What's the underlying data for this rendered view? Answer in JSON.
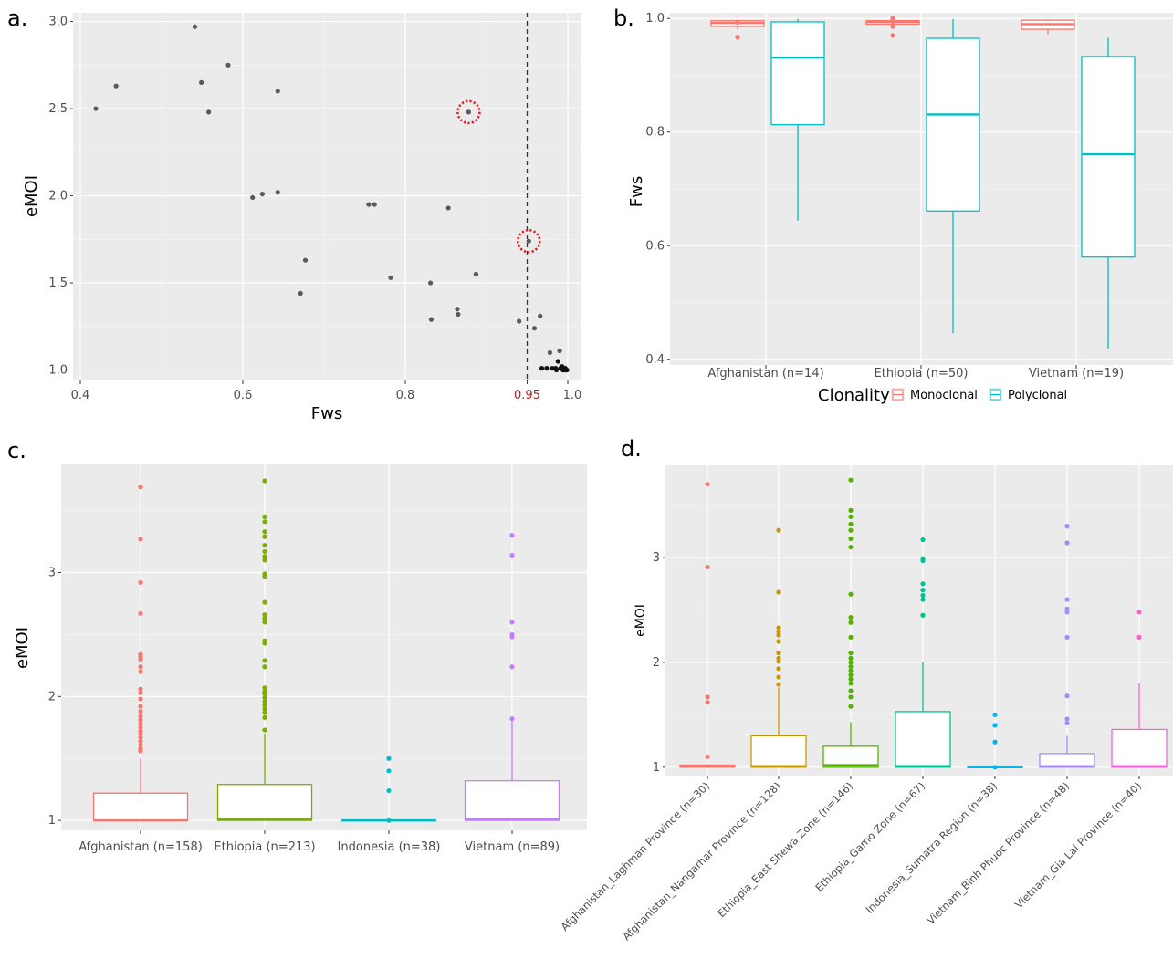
{
  "panel_labels": [
    "a.",
    "b.",
    "c.",
    "d."
  ],
  "colors": {
    "panel_bg": "#ebebeb",
    "grid_major": "#ffffff",
    "axis_text": "#4d4d4d",
    "title_text": "#000000",
    "afghanistan": "#f8766d",
    "ethiopia": "#7cae00",
    "indonesia": "#00bfc4",
    "vietnam": "#c77cff",
    "monoclonal": "#f8766d",
    "polyclonal": "#00bfc4",
    "laghman": "#f8766d",
    "nangarhar": "#c49a00",
    "east_shewa": "#53b400",
    "gamo": "#00c094",
    "sumatra": "#00b6eb",
    "binh_phuoc": "#a58aff",
    "gia_lai": "#fb61d7",
    "threshold_label": "#b22222",
    "highlight_circle": "#e41a1c"
  },
  "chart_data": [
    {
      "id": "a",
      "type": "scatter",
      "xlabel": "Fws",
      "ylabel": "eMOI",
      "xlim": [
        0.4,
        1.0
      ],
      "ylim": [
        0.94,
        3.05
      ],
      "xticks": [
        "0.4",
        "0.6",
        "0.8",
        "0.95",
        "1.0"
      ],
      "xtick_values": [
        0.4,
        0.6,
        0.8,
        0.95,
        1.0
      ],
      "yticks": [
        "1.0",
        "1.5",
        "2.0",
        "2.5",
        "3.0"
      ],
      "ytick_values": [
        1.0,
        1.5,
        2.0,
        2.5,
        3.0
      ],
      "threshold_x": 0.95,
      "highlighted_points": [
        [
          0.878,
          2.48
        ],
        [
          0.952,
          1.74
        ]
      ],
      "points": [
        [
          0.419,
          2.5
        ],
        [
          0.444,
          2.63
        ],
        [
          0.541,
          2.97
        ],
        [
          0.549,
          2.65
        ],
        [
          0.558,
          2.48
        ],
        [
          0.582,
          2.75
        ],
        [
          0.612,
          1.99
        ],
        [
          0.624,
          2.01
        ],
        [
          0.643,
          2.6
        ],
        [
          0.643,
          2.02
        ],
        [
          0.677,
          1.63
        ],
        [
          0.671,
          1.44
        ],
        [
          0.755,
          1.95
        ],
        [
          0.762,
          1.95
        ],
        [
          0.782,
          1.53
        ],
        [
          0.831,
          1.5
        ],
        [
          0.832,
          1.29
        ],
        [
          0.853,
          1.93
        ],
        [
          0.864,
          1.35
        ],
        [
          0.865,
          1.32
        ],
        [
          0.878,
          2.48
        ],
        [
          0.887,
          1.55
        ],
        [
          0.94,
          1.28
        ],
        [
          0.952,
          1.74
        ],
        [
          0.959,
          1.24
        ],
        [
          0.966,
          1.31
        ],
        [
          0.968,
          1.01
        ],
        [
          0.974,
          1.01
        ],
        [
          0.978,
          1.1
        ],
        [
          0.981,
          1.01
        ],
        [
          0.985,
          1.01
        ],
        [
          0.988,
          1.05
        ],
        [
          0.99,
          1.11
        ],
        [
          0.991,
          1.01
        ],
        [
          0.993,
          1.02
        ],
        [
          0.995,
          1.0
        ],
        [
          0.997,
          1.01
        ],
        [
          0.998,
          1.0
        ],
        [
          0.999,
          1.0
        ],
        [
          0.986,
          1.0
        ],
        [
          0.994,
          1.0
        ]
      ]
    },
    {
      "id": "b",
      "type": "box",
      "ylabel": "Fws",
      "ylim": [
        0.39,
        1.01
      ],
      "yticks": [
        "0.4",
        "0.6",
        "0.8",
        "1.0"
      ],
      "ytick_values": [
        0.4,
        0.6,
        0.8,
        1.0
      ],
      "categories": [
        "Afghanistan (n=14)",
        "Ethiopia (n=50)",
        "Vietnam (n=19)"
      ],
      "legend_title": "Clonality",
      "series": [
        {
          "name": "Monoclonal",
          "color_key": "monoclonal",
          "boxes": [
            {
              "q1": 0.986,
              "median": 0.992,
              "q3": 0.996,
              "whisker_low": 0.982,
              "whisker_high": 0.998,
              "outliers": [
                0.967,
                0.993
              ]
            },
            {
              "q1": 0.99,
              "median": 0.994,
              "q3": 0.996,
              "whisker_low": 0.986,
              "whisker_high": 0.998,
              "outliers": [
                0.97,
                0.986,
                0.995,
                1.0
              ]
            },
            {
              "q1": 0.981,
              "median": 0.99,
              "q3": 0.997,
              "whisker_low": 0.972,
              "whisker_high": 0.999,
              "outliers": []
            }
          ]
        },
        {
          "name": "Polyclonal",
          "color_key": "polyclonal",
          "boxes": [
            {
              "q1": 0.813,
              "median": 0.931,
              "q3": 0.994,
              "whisker_low": 0.644,
              "whisker_high": 0.999,
              "outliers": []
            },
            {
              "q1": 0.661,
              "median": 0.831,
              "q3": 0.965,
              "whisker_low": 0.446,
              "whisker_high": 0.999,
              "outliers": []
            },
            {
              "q1": 0.58,
              "median": 0.761,
              "q3": 0.933,
              "whisker_low": 0.419,
              "whisker_high": 0.966,
              "outliers": []
            }
          ]
        }
      ]
    },
    {
      "id": "c",
      "type": "box",
      "ylabel": "eMOI",
      "ylim": [
        0.92,
        3.88
      ],
      "yticks": [
        "1",
        "2",
        "3"
      ],
      "ytick_values": [
        1,
        2,
        3
      ],
      "categories": [
        "Afghanistan (n=158)",
        "Ethiopia (n=213)",
        "Indonesia (n=38)",
        "Vietnam (n=89)"
      ],
      "color_keys": [
        "afghanistan",
        "ethiopia",
        "indonesia",
        "vietnam"
      ],
      "boxes": [
        {
          "q1": 1.0,
          "median": 1.0,
          "q3": 1.22,
          "whisker_low": 1.0,
          "whisker_high": 1.5,
          "outliers": [
            3.69,
            3.27,
            2.92,
            2.67,
            2.34,
            2.32,
            2.3,
            2.24,
            2.2,
            2.06,
            2.03,
            1.98,
            1.92,
            1.88,
            1.84,
            1.81,
            1.78,
            1.75,
            1.72,
            1.7,
            1.67,
            1.64,
            1.61,
            1.58,
            1.56
          ]
        },
        {
          "q1": 1.0,
          "median": 1.01,
          "q3": 1.29,
          "whisker_low": 1.0,
          "whisker_high": 1.7,
          "outliers": [
            3.74,
            3.45,
            3.41,
            3.33,
            3.29,
            3.22,
            3.17,
            3.13,
            3.1,
            2.99,
            2.97,
            2.76,
            2.66,
            2.63,
            2.6,
            2.45,
            2.43,
            2.29,
            2.24,
            2.07,
            2.04,
            2.02,
            1.99,
            1.96,
            1.93,
            1.9,
            1.87,
            1.83,
            1.73
          ]
        },
        {
          "q1": 1.0,
          "median": 1.0,
          "q3": 1.0,
          "whisker_low": 1.0,
          "whisker_high": 1.0,
          "outliers": [
            1.5,
            1.4,
            1.24,
            1.0
          ]
        },
        {
          "q1": 1.0,
          "median": 1.01,
          "q3": 1.32,
          "whisker_low": 1.0,
          "whisker_high": 1.8,
          "outliers": [
            3.3,
            3.14,
            2.6,
            2.5,
            2.48,
            2.24,
            1.82
          ]
        }
      ]
    },
    {
      "id": "d",
      "type": "box",
      "ylabel": "eMOI",
      "ylim": [
        0.92,
        3.88
      ],
      "yticks": [
        "1",
        "2",
        "3"
      ],
      "ytick_values": [
        1,
        2,
        3
      ],
      "categories": [
        "Afghanistan_Laghman Province (n=30)",
        "Afghanistan_Nangarhar Province (n=128)",
        "Ethiopia_East Shewa Zone (n=146)",
        "Ethiopia_Gamo Zone (n=67)",
        "Indonesia_Sumatra Region (n=38)",
        "Vietnam_Binh Phuoc Province (n=48)",
        "Vietnam_Gia Lai Province (n=40)"
      ],
      "color_keys": [
        "laghman",
        "nangarhar",
        "east_shewa",
        "gamo",
        "sumatra",
        "binh_phuoc",
        "gia_lai"
      ],
      "boxes": [
        {
          "q1": 1.0,
          "median": 1.01,
          "q3": 1.02,
          "whisker_low": 1.0,
          "whisker_high": 1.03,
          "outliers": [
            3.7,
            2.91,
            1.67,
            1.62,
            1.1
          ]
        },
        {
          "q1": 1.0,
          "median": 1.01,
          "q3": 1.3,
          "whisker_low": 1.0,
          "whisker_high": 1.76,
          "outliers": [
            3.26,
            2.67,
            2.33,
            2.29,
            2.26,
            2.2,
            2.09,
            2.04,
            2.01,
            1.94,
            1.86,
            1.79
          ]
        },
        {
          "q1": 1.0,
          "median": 1.02,
          "q3": 1.2,
          "whisker_low": 1.0,
          "whisker_high": 1.43,
          "outliers": [
            3.74,
            3.45,
            3.39,
            3.32,
            3.26,
            3.18,
            3.1,
            2.65,
            2.43,
            2.38,
            2.24,
            2.09,
            2.04,
            2.0,
            1.96,
            1.92,
            1.88,
            1.84,
            1.8,
            1.73,
            1.67,
            1.58
          ]
        },
        {
          "q1": 1.0,
          "median": 1.01,
          "q3": 1.53,
          "whisker_low": 1.0,
          "whisker_high": 2.0,
          "outliers": [
            3.17,
            2.99,
            2.97,
            2.75,
            2.69,
            2.64,
            2.6,
            2.45
          ]
        },
        {
          "q1": 1.0,
          "median": 1.0,
          "q3": 1.0,
          "whisker_low": 1.0,
          "whisker_high": 1.0,
          "outliers": [
            1.5,
            1.4,
            1.24,
            1.0
          ]
        },
        {
          "q1": 1.0,
          "median": 1.01,
          "q3": 1.13,
          "whisker_low": 1.0,
          "whisker_high": 1.3,
          "outliers": [
            3.3,
            3.14,
            2.6,
            2.51,
            2.48,
            2.24,
            1.68,
            1.46,
            1.42
          ]
        },
        {
          "q1": 1.0,
          "median": 1.01,
          "q3": 1.36,
          "whisker_low": 1.0,
          "whisker_high": 1.8,
          "outliers": [
            2.48,
            2.24
          ]
        }
      ]
    }
  ]
}
